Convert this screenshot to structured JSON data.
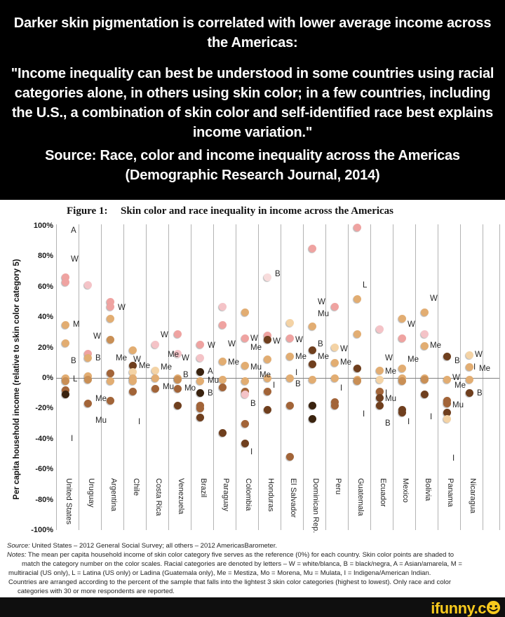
{
  "meme": {
    "title": "Darker skin pigmentation is correlated with lower average income across the Americas:",
    "quote": "\"Income inequality can best be understood in some countries using racial categories alone, in others using skin color; in a few countries, including the U.S., a combination of skin color and self-identified race best explains income variation.\"",
    "source": "Source: Race, color and income inequality across the Americas (Demographic Research Journal, 2014)"
  },
  "chart_data": {
    "type": "scatter",
    "figure_label": "Figure 1:",
    "title": "Skin color and race inequality in income across the Americas",
    "ylabel": "Per capita household income (relative to skin color category 5)",
    "ylim": [
      -100,
      100
    ],
    "yticks": [
      "100%",
      "80%",
      "60%",
      "40%",
      "20%",
      "0%",
      "-20%",
      "-40%",
      "-60%",
      "-80%",
      "-100%"
    ],
    "grid": "vertical country separators, horizontal zero reference line",
    "legend_meaning": {
      "W": "white/blanca",
      "B": "black/negra",
      "A": "Asian/amarela",
      "M": "multiracial (US only)",
      "L": "Latina (US only) or Ladina (Guatemala only)",
      "Me": "Mestiza",
      "Mo": "Morena",
      "Mu": "Mulata",
      "I": "Indigena/American Indian"
    },
    "skin_shades": [
      "#f8dcdc",
      "#f4c3c7",
      "#efa3a1",
      "#f4d3a5",
      "#e2ad72",
      "#c98f55",
      "#a26438",
      "#6f3f1e",
      "#3a230f"
    ],
    "countries": [
      {
        "name": "United States",
        "dots": [
          [
            66,
            3
          ],
          [
            63,
            3
          ],
          [
            35,
            5
          ],
          [
            23,
            5
          ],
          [
            0,
            5
          ],
          [
            -2,
            6
          ],
          [
            -8,
            7
          ],
          [
            -11,
            9
          ]
        ],
        "letters": [
          {
            "t": "A",
            "v": 97
          },
          {
            "t": "W",
            "v": 78
          },
          {
            "t": "M",
            "v": 35,
            "dx": 8
          },
          {
            "t": "B",
            "v": 11
          },
          {
            "t": "L",
            "v": -1,
            "dx": 8
          },
          {
            "t": "I",
            "v": -40
          }
        ]
      },
      {
        "name": "Uruguay",
        "dots": [
          [
            61,
            2
          ],
          [
            16,
            3
          ],
          [
            13,
            5
          ],
          [
            1,
            5
          ],
          [
            -1,
            6
          ],
          [
            -17,
            7
          ]
        ],
        "letters": [
          {
            "t": "W",
            "v": 27
          },
          {
            "t": "B",
            "v": 13,
            "dx": 8
          },
          {
            "t": "Me",
            "v": -14,
            "dx": 8
          },
          {
            "t": "Mu",
            "v": -28,
            "dx": 8
          }
        ]
      },
      {
        "name": "Argentina",
        "dots": [
          [
            50,
            3
          ],
          [
            47,
            3
          ],
          [
            39,
            5
          ],
          [
            25,
            6
          ],
          [
            3,
            7
          ],
          [
            -2,
            5
          ],
          [
            -15,
            7
          ]
        ],
        "letters": [
          {
            "t": "W",
            "v": 46,
            "dx": 8
          },
          {
            "t": "Me",
            "v": 13
          }
        ]
      },
      {
        "name": "Chile",
        "dots": [
          [
            18,
            5
          ],
          [
            8,
            8
          ],
          [
            4,
            4
          ],
          [
            0,
            5
          ],
          [
            -2,
            5
          ],
          [
            -9,
            7
          ]
        ],
        "letters": [
          {
            "t": "W",
            "v": 12,
            "dx": -2
          },
          {
            "t": "Me",
            "v": 8,
            "dx": 6
          },
          {
            "t": "I",
            "v": -29
          }
        ]
      },
      {
        "name": "Costa Rica",
        "dots": [
          [
            22,
            2
          ],
          [
            5,
            4
          ],
          [
            0,
            5
          ],
          [
            -7,
            7
          ]
        ],
        "letters": [
          {
            "t": "W",
            "v": 28
          },
          {
            "t": "Me",
            "v": 7
          },
          {
            "t": "Mu",
            "v": -6,
            "dx": 8
          }
        ]
      },
      {
        "name": "Venezuela",
        "dots": [
          [
            29,
            3
          ],
          [
            16,
            2
          ],
          [
            0,
            5
          ],
          [
            -1,
            6
          ],
          [
            -7,
            7
          ],
          [
            -18,
            8
          ]
        ],
        "letters": [
          {
            "t": "Me",
            "v": 15,
            "dx": -17
          },
          {
            "t": "W",
            "v": 13,
            "dx": 3
          },
          {
            "t": "B",
            "v": 2
          },
          {
            "t": "Mo",
            "v": -7,
            "dx": 7
          }
        ]
      },
      {
        "name": "Brazil",
        "dots": [
          [
            22,
            3
          ],
          [
            13,
            2
          ],
          [
            4,
            9
          ],
          [
            -2,
            5
          ],
          [
            -10,
            9
          ],
          [
            -18,
            7
          ],
          [
            -20,
            7
          ],
          [
            -26,
            8
          ]
        ],
        "letters": [
          {
            "t": "W",
            "v": 21,
            "dx": 8
          },
          {
            "t": "A",
            "v": 4,
            "dx": 8
          },
          {
            "t": "Mu",
            "v": -2,
            "dx": 8
          },
          {
            "t": "B",
            "v": -10,
            "dx": 8
          }
        ]
      },
      {
        "name": "Paraguay",
        "dots": [
          [
            47,
            2
          ],
          [
            35,
            3
          ],
          [
            11,
            5
          ],
          [
            -1,
            5
          ],
          [
            -6,
            7
          ],
          [
            -36,
            8
          ]
        ],
        "letters": [
          {
            "t": "W",
            "v": 22
          },
          {
            "t": "Me",
            "v": 10
          }
        ]
      },
      {
        "name": "Colombia",
        "dots": [
          [
            43,
            5
          ],
          [
            26,
            3
          ],
          [
            8,
            5
          ],
          [
            -2,
            5
          ],
          [
            -9,
            7
          ],
          [
            -11,
            2
          ],
          [
            -30,
            7
          ],
          [
            -43,
            8
          ]
        ],
        "letters": [
          {
            "t": "W",
            "v": 26
          },
          {
            "t": "Me",
            "v": 20
          },
          {
            "t": "Mu",
            "v": 7
          },
          {
            "t": "B",
            "v": -17
          },
          {
            "t": "I",
            "v": -49
          }
        ]
      },
      {
        "name": "Honduras",
        "dots": [
          [
            66,
            1
          ],
          [
            28,
            3
          ],
          [
            25,
            8
          ],
          [
            12,
            5
          ],
          [
            0,
            5
          ],
          [
            -9,
            7
          ],
          [
            -21,
            8
          ]
        ],
        "letters": [
          {
            "t": "B",
            "v": 68,
            "dx": 8
          },
          {
            "t": "W",
            "v": 24
          },
          {
            "t": "Me",
            "v": 2,
            "dx": -14
          },
          {
            "t": "I",
            "v": -5
          }
        ]
      },
      {
        "name": "El Salvador",
        "dots": [
          [
            36,
            4
          ],
          [
            26,
            3
          ],
          [
            14,
            5
          ],
          [
            0,
            5
          ],
          [
            -18,
            7
          ],
          [
            -52,
            7
          ]
        ],
        "letters": [
          {
            "t": "W",
            "v": 25
          },
          {
            "t": "Me",
            "v": 14
          },
          {
            "t": "I",
            "v": 3
          },
          {
            "t": "B",
            "v": -4
          }
        ]
      },
      {
        "name": "Dominican Rep.",
        "dots": [
          [
            85,
            3
          ],
          [
            34,
            5
          ],
          [
            18,
            8
          ],
          [
            9,
            8
          ],
          [
            -1,
            5
          ],
          [
            -18,
            9
          ],
          [
            -27,
            9
          ]
        ],
        "letters": [
          {
            "t": "W",
            "v": 50
          },
          {
            "t": "Mu",
            "v": 42
          },
          {
            "t": "B",
            "v": 22
          },
          {
            "t": "Me",
            "v": 14
          }
        ]
      },
      {
        "name": "Peru",
        "dots": [
          [
            47,
            3
          ],
          [
            20,
            4
          ],
          [
            10,
            5
          ],
          [
            0,
            5
          ],
          [
            -16,
            7
          ],
          [
            -18,
            7
          ]
        ],
        "letters": [
          {
            "t": "W",
            "v": 19
          },
          {
            "t": "Me",
            "v": 10
          },
          {
            "t": "I",
            "v": -7
          }
        ]
      },
      {
        "name": "Guatemala",
        "dots": [
          [
            99,
            3
          ],
          [
            52,
            5
          ],
          [
            29,
            5
          ],
          [
            6,
            8
          ],
          [
            -1,
            5
          ],
          [
            -2,
            6
          ]
        ],
        "letters": [
          {
            "t": "L",
            "v": 61
          },
          {
            "t": "I",
            "v": -24
          }
        ]
      },
      {
        "name": "Ecuador",
        "dots": [
          [
            32,
            2
          ],
          [
            5,
            5
          ],
          [
            -1,
            4
          ],
          [
            -9,
            7
          ],
          [
            -13,
            8
          ],
          [
            -18,
            8
          ]
        ],
        "letters": [
          {
            "t": "W",
            "v": 13
          },
          {
            "t": "Me",
            "v": 4
          },
          {
            "t": "I",
            "v": -10
          },
          {
            "t": "Mu",
            "v": -14
          },
          {
            "t": "B",
            "v": -30
          }
        ]
      },
      {
        "name": "Mexico",
        "dots": [
          [
            39,
            5
          ],
          [
            26,
            3
          ],
          [
            6,
            5
          ],
          [
            0,
            5
          ],
          [
            -2,
            6
          ],
          [
            -21,
            8
          ],
          [
            -23,
            8
          ]
        ],
        "letters": [
          {
            "t": "W",
            "v": 35
          },
          {
            "t": "Me",
            "v": 12
          },
          {
            "t": "I",
            "v": -29
          }
        ]
      },
      {
        "name": "Bolivia",
        "dots": [
          [
            43,
            5
          ],
          [
            29,
            2
          ],
          [
            21,
            5
          ],
          [
            0,
            5
          ],
          [
            -1,
            6
          ],
          [
            -11,
            8
          ]
        ],
        "letters": [
          {
            "t": "W",
            "v": 52
          },
          {
            "t": "Me",
            "v": 21
          },
          {
            "t": "I",
            "v": -26
          }
        ]
      },
      {
        "name": "Panama",
        "dots": [
          [
            14,
            8
          ],
          [
            -1,
            5
          ],
          [
            -15,
            7
          ],
          [
            -17,
            7
          ],
          [
            -23,
            8
          ],
          [
            -27,
            4
          ]
        ],
        "letters": [
          {
            "t": "B",
            "v": 11,
            "dx": 8
          },
          {
            "t": "W",
            "v": 0
          },
          {
            "t": "Me",
            "v": -5,
            "dx": 8
          },
          {
            "t": "Mu",
            "v": -18
          },
          {
            "t": "I",
            "v": -53
          }
        ]
      },
      {
        "name": "Nicaragua",
        "dots": [
          [
            15,
            4
          ],
          [
            7,
            5
          ],
          [
            -1,
            5
          ],
          [
            -10,
            8
          ]
        ],
        "letters": [
          {
            "t": "W",
            "v": 15
          },
          {
            "t": "I",
            "v": 7,
            "dx": 3
          },
          {
            "t": "Me",
            "v": 6,
            "dx": 11
          },
          {
            "t": "B",
            "v": -10,
            "dx": 8
          }
        ]
      }
    ]
  },
  "notes": {
    "line1_label": "Source:",
    "line1_text": " United States – 2012 General Social Survey; all others – 2012 AmericasBarometer.",
    "line2_label": "Notes:",
    "line2_text": " The mean per capita household income of skin color category five serves as the reference (0%) for each country. Skin color points are shaded to",
    "line3": "match the category number on the color scales. Racial categories are denoted by letters – W = white/blanca, B = black/negra, A = Asian/amarela, M =",
    "line4": "multiracial (US only), L = Latina (US only) or Ladina (Guatemala only), Me = Mestiza, Mo = Morena, Mu = Mulata, I = Indigena/American Indian.",
    "line5": "Countries are arranged according to the percent of the sample that falls into the lightest 3 skin color categories (highest to lowest). Only race and color",
    "line6": "categories with 30 or more respondents are reported."
  },
  "watermark": {
    "text": "ifunny.c",
    "smiley_icon": "smiley-o",
    "color": "#f7c91d"
  }
}
